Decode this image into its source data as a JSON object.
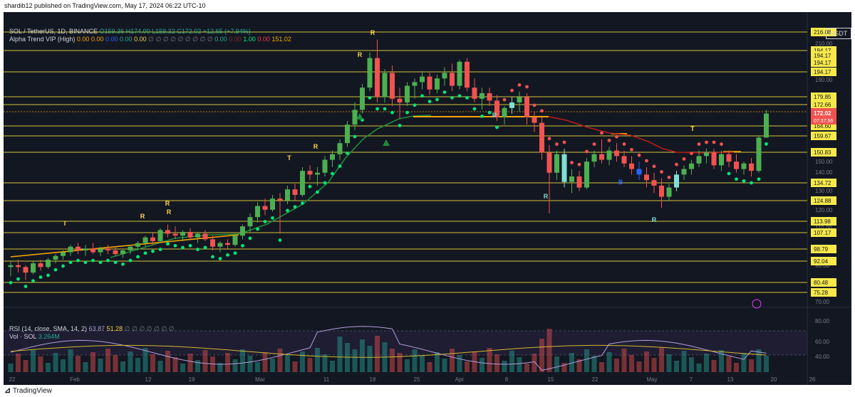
{
  "header_note": "shardib12 published on TradingView.com, May 17, 2024 06:22 UTC-10",
  "legend": {
    "symbol": "SOL / TetherUS, 1D, BINANCE",
    "open": "O159.36",
    "high": "H174.00",
    "low": "L159.32",
    "close": "C172.02",
    "change": "+12.65 (+7.94%)",
    "indicator": "Alpha Trend VIP (High)",
    "ind_values": [
      "0.00",
      "0.00",
      "0.00",
      "0.00",
      "0.00",
      "∅ ∅ ∅ ∅ ∅ ∅ ∅ ∅ ∅",
      "0.00",
      "0.00",
      "1.00",
      "0.00",
      "151.02"
    ]
  },
  "rsi_legend": {
    "label": "RSI (14, close, SMA, 14, 2)",
    "rsi": "63.87",
    "sma": "51.28",
    "empties": "∅ ∅ ∅ ∅ ∅ ∅ ∅",
    "vol_label": "Vol · SOL",
    "vol_value": "3.264M"
  },
  "currency_label": "USDT",
  "footer": "TradingView",
  "price_badge": {
    "value": "172.02",
    "countdown": "07:37:56"
  },
  "colors": {
    "up": "#4caf50",
    "down": "#f05350",
    "line": "#f7e94a",
    "bg": "#131722",
    "blue": "#2962ff",
    "cyan": "#7fdfd4"
  },
  "chart_data": {
    "type": "candlestick",
    "symbol": "SOL / TetherUS",
    "timeframe": "1D",
    "exchange": "BINANCE",
    "x_tick_labels": [
      "22",
      "Feb",
      "12",
      "19",
      "Mar",
      "11",
      "18",
      "25",
      "Apr",
      "8",
      "15",
      "22",
      "May",
      "7",
      "13",
      "20",
      "26"
    ],
    "y_tick_labels": [
      "210.00",
      "190.00",
      "160.00",
      "150.00",
      "140.00",
      "130.00",
      "120.00",
      "110.00",
      "90.00",
      "70.00"
    ],
    "horizontal_levels": [
      "216.08",
      "194.17",
      "194.17",
      "194.17",
      "194.17",
      "179.85",
      "172.66",
      "164.60",
      "159.67",
      "150.83",
      "134.72",
      "124.88",
      "113.98",
      "107.17",
      "98.79",
      "92.04",
      "80.48",
      "75.28"
    ],
    "last_price": 172.02,
    "candles": [
      [
        89,
        92,
        84,
        90
      ],
      [
        90,
        93,
        86,
        89
      ],
      [
        89,
        90,
        82,
        86
      ],
      [
        86,
        92,
        85,
        91
      ],
      [
        91,
        93,
        87,
        89
      ],
      [
        89,
        94,
        88,
        93
      ],
      [
        93,
        96,
        91,
        95
      ],
      [
        95,
        98,
        93,
        97
      ],
      [
        97,
        101,
        95,
        100
      ],
      [
        100,
        102,
        96,
        98
      ],
      [
        98,
        101,
        95,
        99
      ],
      [
        99,
        102,
        96,
        97
      ],
      [
        97,
        100,
        95,
        99
      ],
      [
        99,
        101,
        96,
        98
      ],
      [
        98,
        100,
        95,
        96
      ],
      [
        96,
        99,
        94,
        98
      ],
      [
        98,
        101,
        96,
        100
      ],
      [
        100,
        103,
        98,
        102
      ],
      [
        102,
        106,
        100,
        105
      ],
      [
        105,
        108,
        101,
        103
      ],
      [
        103,
        110,
        102,
        109
      ],
      [
        109,
        112,
        105,
        107
      ],
      [
        107,
        111,
        104,
        106
      ],
      [
        106,
        109,
        103,
        108
      ],
      [
        108,
        110,
        104,
        105
      ],
      [
        105,
        108,
        102,
        107
      ],
      [
        107,
        109,
        103,
        104
      ],
      [
        104,
        106,
        98,
        100
      ],
      [
        100,
        103,
        97,
        102
      ],
      [
        102,
        104,
        99,
        101
      ],
      [
        101,
        107,
        100,
        106
      ],
      [
        106,
        112,
        104,
        111
      ],
      [
        111,
        118,
        108,
        116
      ],
      [
        116,
        124,
        113,
        122
      ],
      [
        122,
        126,
        117,
        120
      ],
      [
        120,
        128,
        119,
        126
      ],
      [
        126,
        129,
        107,
        125
      ],
      [
        125,
        133,
        123,
        131
      ],
      [
        131,
        134,
        125,
        128
      ],
      [
        128,
        143,
        127,
        141
      ],
      [
        141,
        144,
        136,
        139
      ],
      [
        139,
        143,
        133,
        140
      ],
      [
        140,
        149,
        138,
        147
      ],
      [
        147,
        152,
        143,
        150
      ],
      [
        150,
        158,
        147,
        156
      ],
      [
        156,
        168,
        154,
        166
      ],
      [
        166,
        178,
        163,
        174
      ],
      [
        174,
        188,
        172,
        186
      ],
      [
        186,
        205,
        184,
        202
      ],
      [
        202,
        212,
        178,
        181
      ],
      [
        181,
        196,
        178,
        194
      ],
      [
        194,
        198,
        176,
        180
      ],
      [
        180,
        186,
        169,
        178
      ],
      [
        178,
        189,
        176,
        187
      ],
      [
        187,
        191,
        180,
        189
      ],
      [
        189,
        195,
        185,
        192
      ],
      [
        192,
        194,
        182,
        185
      ],
      [
        185,
        193,
        183,
        191
      ],
      [
        191,
        197,
        187,
        194
      ],
      [
        194,
        199,
        184,
        187
      ],
      [
        187,
        201,
        185,
        200
      ],
      [
        200,
        202,
        184,
        186
      ],
      [
        186,
        191,
        178,
        180
      ],
      [
        180,
        186,
        174,
        183
      ],
      [
        183,
        186,
        176,
        179
      ],
      [
        179,
        182,
        168,
        170
      ],
      [
        170,
        176,
        166,
        175
      ],
      [
        175,
        181,
        172,
        178
      ],
      [
        178,
        184,
        173,
        181
      ],
      [
        181,
        183,
        166,
        170
      ],
      [
        170,
        173,
        162,
        167
      ],
      [
        167,
        170,
        147,
        151
      ],
      [
        151,
        155,
        118,
        140
      ],
      [
        140,
        152,
        136,
        150
      ],
      [
        150,
        153,
        132,
        135
      ],
      [
        135,
        142,
        129,
        138
      ],
      [
        138,
        141,
        130,
        132
      ],
      [
        132,
        148,
        131,
        146
      ],
      [
        146,
        152,
        143,
        150
      ],
      [
        150,
        158,
        145,
        147
      ],
      [
        147,
        154,
        144,
        152
      ],
      [
        152,
        156,
        146,
        149
      ],
      [
        149,
        152,
        143,
        145
      ],
      [
        145,
        149,
        139,
        142
      ],
      [
        142,
        146,
        136,
        139
      ],
      [
        139,
        143,
        132,
        136
      ],
      [
        136,
        140,
        129,
        133
      ],
      [
        133,
        137,
        121,
        127
      ],
      [
        127,
        134,
        125,
        132
      ],
      [
        132,
        141,
        130,
        139
      ],
      [
        139,
        144,
        136,
        142
      ],
      [
        142,
        147,
        139,
        145
      ],
      [
        145,
        152,
        143,
        149
      ],
      [
        149,
        153,
        145,
        151
      ],
      [
        151,
        153,
        142,
        144
      ],
      [
        144,
        152,
        141,
        150
      ],
      [
        150,
        152,
        143,
        146
      ],
      [
        146,
        150,
        140,
        142
      ],
      [
        142,
        146,
        139,
        145
      ],
      [
        145,
        148,
        138,
        141
      ],
      [
        141,
        160,
        140,
        159
      ],
      [
        159,
        174,
        159,
        172
      ]
    ]
  }
}
